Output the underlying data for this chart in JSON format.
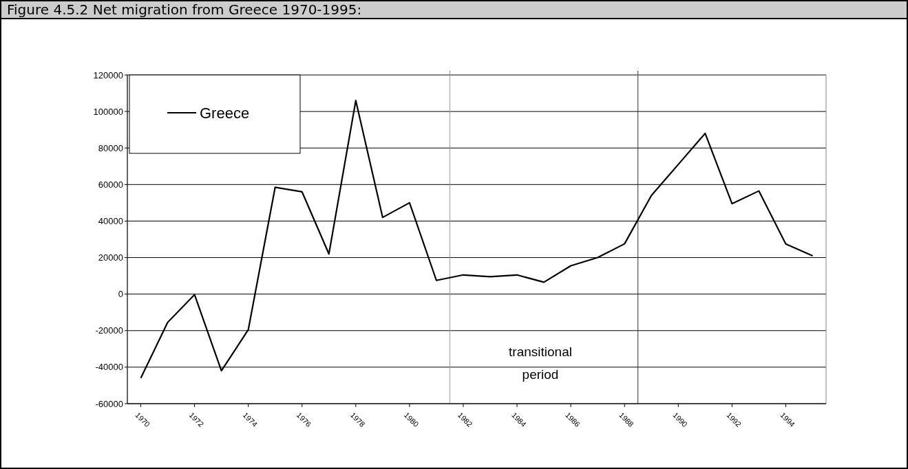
{
  "chart_data": {
    "type": "line",
    "title": "Figure 4.5.2 Net migration from Greece 1970-1995:",
    "x": [
      1970,
      1971,
      1972,
      1973,
      1974,
      1975,
      1976,
      1977,
      1978,
      1979,
      1980,
      1981,
      1982,
      1983,
      1984,
      1985,
      1986,
      1987,
      1988,
      1989,
      1990,
      1991,
      1992,
      1993,
      1994,
      1995
    ],
    "series": [
      {
        "name": "Greece",
        "color": "#000000",
        "values": [
          -46000,
          -15500,
          -300,
          -42000,
          -19500,
          58500,
          56000,
          22000,
          106000,
          42000,
          50000,
          7500,
          10500,
          9500,
          10500,
          6500,
          15500,
          20000,
          27500,
          54000,
          71000,
          88000,
          49500,
          56500,
          27500,
          21000
        ]
      }
    ],
    "xlim": [
      1969.5,
      1995.5
    ],
    "xticks": [
      1970,
      1972,
      1974,
      1976,
      1978,
      1980,
      1982,
      1984,
      1986,
      1988,
      1990,
      1992,
      1994
    ],
    "ylim": [
      -60000,
      120000
    ],
    "yticks": [
      -60000,
      -40000,
      -20000,
      0,
      20000,
      40000,
      60000,
      80000,
      100000,
      120000
    ],
    "grid": "y",
    "legend": "top left",
    "line_style": "solid",
    "marker": "none",
    "ref_lines": [
      {
        "axis": "x",
        "value": 1981.5,
        "color": "#999999"
      },
      {
        "axis": "x",
        "value": 1988.5,
        "color": "#333333"
      }
    ],
    "annotations": [
      "transitional period"
    ]
  }
}
